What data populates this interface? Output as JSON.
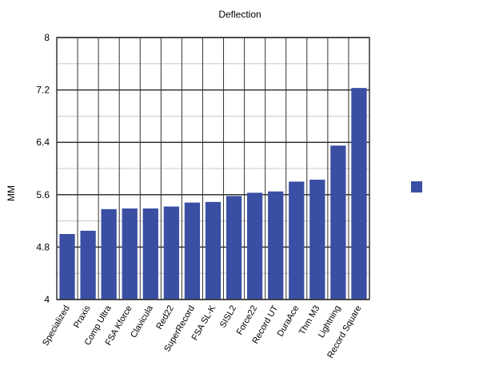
{
  "chart_data": {
    "type": "bar",
    "title": "Deflection",
    "xlabel": "",
    "ylabel": "MM",
    "categories": [
      "Specialized",
      "Praxis",
      "Comp Ultra",
      "FSA Kforce",
      "Clavicula",
      "Red22",
      "SuperRecord",
      "FSA SL-K",
      "SISL2",
      "Force22",
      "Record UT",
      "DuraAce",
      "Thm M3",
      "Lightning",
      "Record Square"
    ],
    "series": [
      {
        "values": [
          5.0,
          5.05,
          5.38,
          5.39,
          5.39,
          5.42,
          5.48,
          5.49,
          5.58,
          5.63,
          5.65,
          5.8,
          5.83,
          6.35,
          7.23
        ]
      }
    ],
    "ylim": [
      4,
      8
    ],
    "yticks": [
      "4",
      "4.8",
      "5.6",
      "6.4",
      "7.2",
      "8"
    ],
    "minor_gridline_step": 0.4,
    "grid": true,
    "legend": "right",
    "colors": {
      "bar": "#3a4fa3",
      "grid_major": "#333333",
      "grid_minor": "#c8c8c8",
      "frame": "#333333"
    }
  }
}
